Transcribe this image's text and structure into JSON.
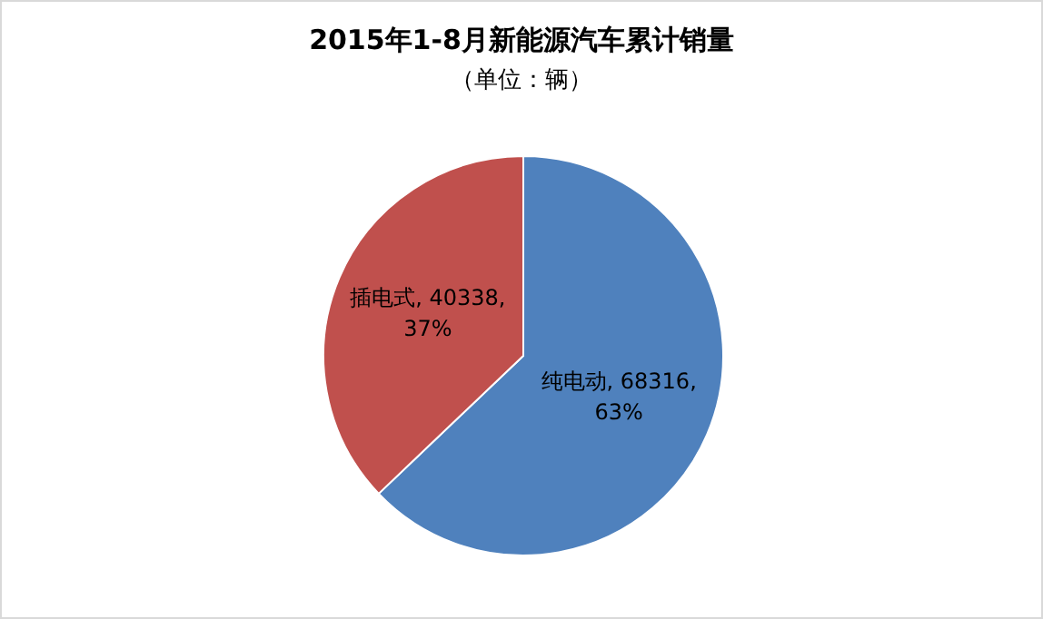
{
  "chart_data": {
    "type": "pie",
    "title": "2015年1-8月新能源汽车累计销量",
    "subtitle": "（单位：辆）",
    "categories": [
      "纯电动",
      "插电式"
    ],
    "values": [
      68316,
      40338
    ],
    "colors": [
      "#4f81bd",
      "#c0504d"
    ],
    "value_labels": [
      "68316, 63%",
      "40338, 37%"
    ],
    "legend": false
  }
}
